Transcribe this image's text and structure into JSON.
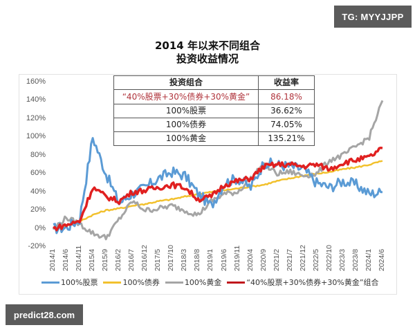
{
  "badges": {
    "top_right": "TG: MYYJJPP",
    "bottom_left": "predict28.com"
  },
  "chart_data": {
    "type": "line",
    "title": "2014 年以来不同组合\n投资收益情况",
    "title_line1": "2014 年以来不同组合",
    "title_line2": "投资收益情况",
    "xlabel": "",
    "ylabel": "",
    "ylim": [
      -20,
      160
    ],
    "y_ticks": [
      "160%",
      "140%",
      "120%",
      "100%",
      "80%",
      "60%",
      "40%",
      "20%",
      "0%",
      "-20%"
    ],
    "x": [
      "2014/1",
      "2014/6",
      "2014/11",
      "2015/4",
      "2015/9",
      "2016/2",
      "2016/7",
      "2016/12",
      "2017/5",
      "2017/10",
      "2018/3",
      "2018/8",
      "2019/1",
      "2019/6",
      "2019/11",
      "2020/4",
      "2020/9",
      "2021/2",
      "2021/7",
      "2021/12",
      "2022/5",
      "2022/10",
      "2023/3",
      "2023/8",
      "2024/1",
      "2024/6"
    ],
    "series": [
      {
        "name": "100%股票",
        "color": "#5b9bd5",
        "values": [
          0,
          1,
          10,
          100,
          60,
          28,
          38,
          45,
          55,
          62,
          58,
          38,
          25,
          50,
          55,
          45,
          72,
          70,
          68,
          65,
          50,
          45,
          52,
          48,
          38,
          40
        ]
      },
      {
        "name": "100%债券",
        "color": "#f2c12e",
        "values": [
          0,
          3,
          8,
          15,
          20,
          22,
          25,
          27,
          30,
          32,
          35,
          38,
          40,
          42,
          44,
          46,
          48,
          52,
          55,
          58,
          60,
          62,
          65,
          67,
          70,
          74
        ]
      },
      {
        "name": "100%黄金",
        "color": "#a5a5a5",
        "values": [
          0,
          12,
          5,
          -5,
          -10,
          10,
          30,
          20,
          22,
          25,
          20,
          15,
          30,
          38,
          40,
          55,
          70,
          60,
          62,
          58,
          60,
          75,
          80,
          90,
          100,
          140
        ]
      },
      {
        "name": "“40%股票+30%债券+30%黄金”组合",
        "color": "#e02020",
        "values": [
          0,
          4,
          8,
          45,
          35,
          30,
          40,
          42,
          45,
          48,
          45,
          32,
          35,
          48,
          52,
          55,
          68,
          70,
          70,
          68,
          70,
          65,
          72,
          75,
          78,
          88
        ]
      }
    ],
    "legend_position": "bottom",
    "grid": false,
    "table": {
      "headers": [
        "投资组合",
        "收益率"
      ],
      "rows": [
        {
          "portfolio": "“40%股票+30%债券+30%黄金”",
          "return": "86.18%"
        },
        {
          "portfolio": "100%股票",
          "return": "36.62%"
        },
        {
          "portfolio": "100%债券",
          "return": "74.05%"
        },
        {
          "portfolio": "100%黄金",
          "return": "135.21%"
        }
      ]
    }
  },
  "legend": {
    "items": [
      {
        "label": "100%股票",
        "color": "#5b9bd5"
      },
      {
        "label": "100%债券",
        "color": "#f2c12e"
      },
      {
        "label": "100%黄金",
        "color": "#a5a5a5"
      },
      {
        "label": "“40%股票+30%债券+30%黄金”组合",
        "color": "#c0161c"
      }
    ]
  }
}
